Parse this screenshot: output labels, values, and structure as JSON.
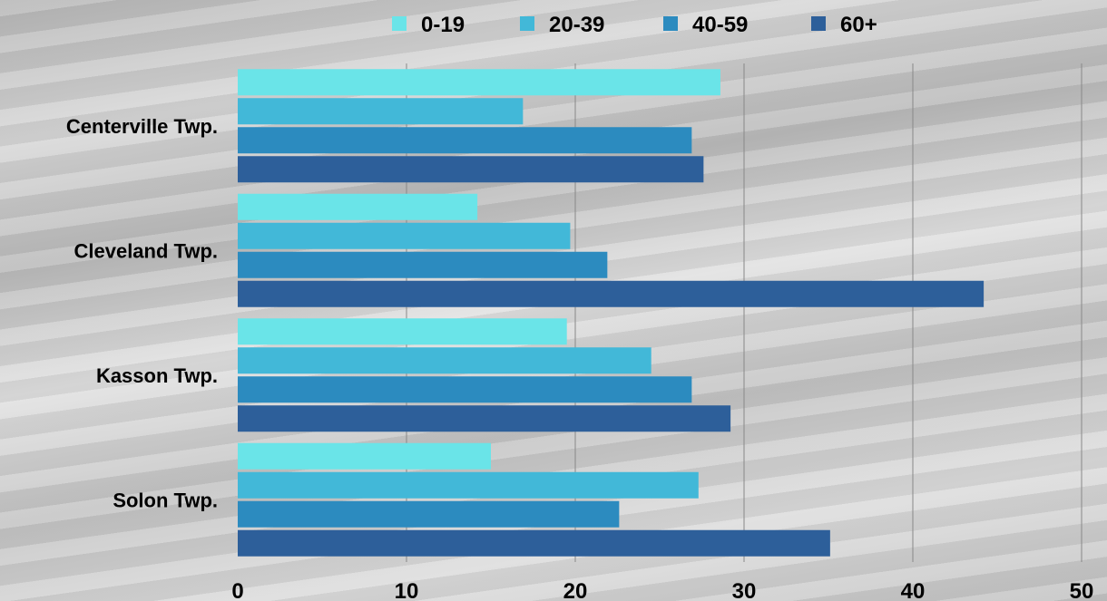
{
  "chart_data": {
    "type": "bar",
    "orientation": "horizontal",
    "categories": [
      "Centerville Twp.",
      "Cleveland Twp.",
      "Kasson Twp.",
      "Solon Twp."
    ],
    "series": [
      {
        "name": "0-19",
        "color": "#6ae4e8",
        "values": [
          28.6,
          14.2,
          19.5,
          15.0
        ]
      },
      {
        "name": "20-39",
        "color": "#42b8d8",
        "values": [
          16.9,
          19.7,
          24.5,
          27.3
        ]
      },
      {
        "name": "40-59",
        "color": "#2c8bbf",
        "values": [
          26.9,
          21.9,
          26.9,
          22.6
        ]
      },
      {
        "name": "60+",
        "color": "#2d5f9a",
        "values": [
          27.6,
          44.2,
          29.2,
          35.1
        ]
      }
    ],
    "xlim": [
      0,
      50
    ],
    "xticks": [
      0,
      10,
      20,
      30,
      40,
      50
    ],
    "grid": true,
    "legend_position": "top"
  }
}
